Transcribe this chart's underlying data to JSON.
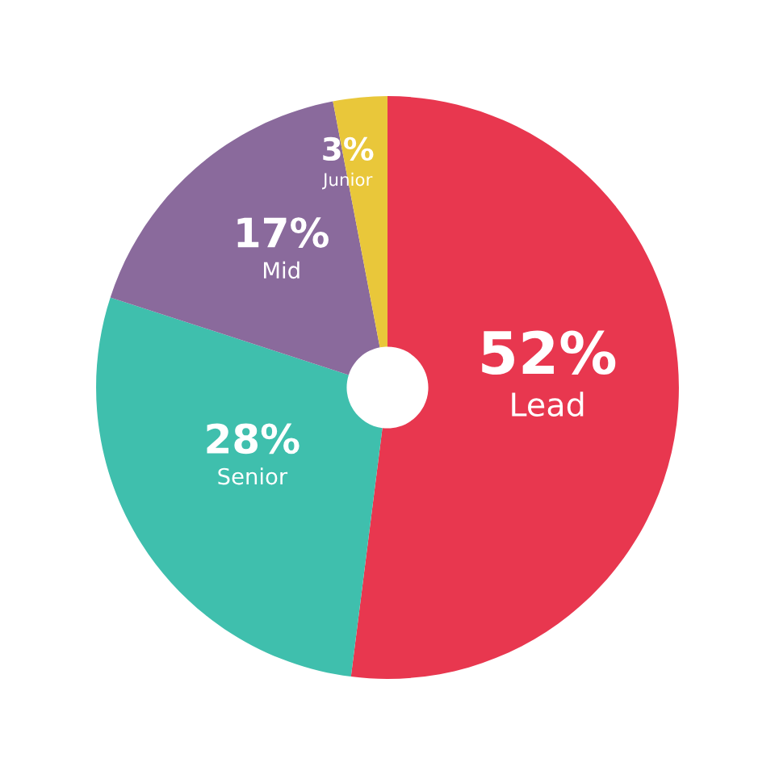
{
  "chart_data": {
    "type": "donut",
    "categories": [
      "Lead",
      "Senior",
      "Mid",
      "Junior"
    ],
    "values": [
      52,
      28,
      17,
      3
    ],
    "colors": [
      "#e8374f",
      "#3fbfad",
      "#8a6a9c",
      "#e9c73a"
    ],
    "value_labels": [
      "52%",
      "28%",
      "17%",
      "3%"
    ]
  }
}
